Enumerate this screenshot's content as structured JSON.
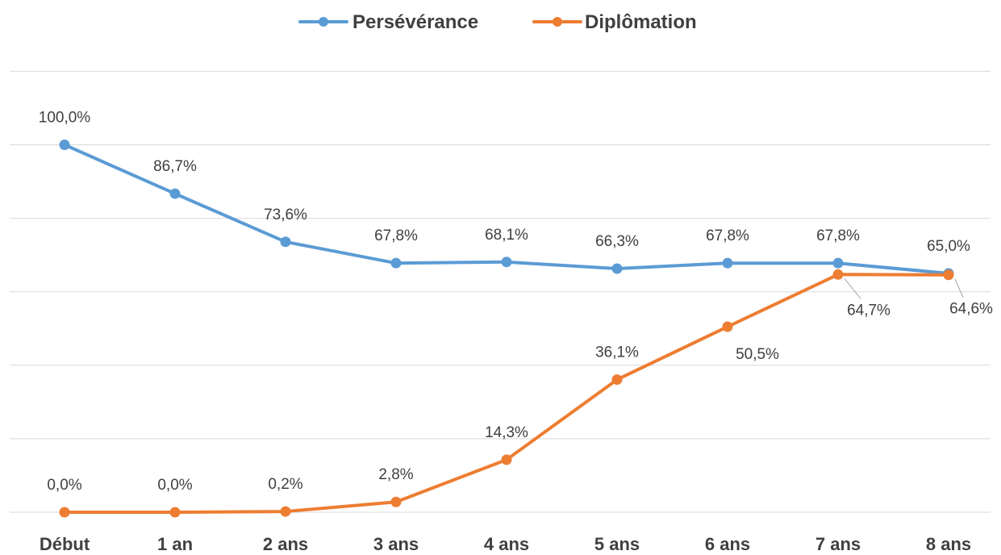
{
  "chart_data": {
    "type": "line",
    "categories": [
      "Début",
      "1 an",
      "2 ans",
      "3 ans",
      "4 ans",
      "5 ans",
      "6 ans",
      "7 ans",
      "8 ans"
    ],
    "series": [
      {
        "name": "Persévérance",
        "color": "#5b9bd5",
        "values": [
          100.0,
          86.7,
          73.6,
          67.8,
          68.1,
          66.3,
          67.8,
          67.8,
          65.0
        ],
        "labels": [
          "100,0%",
          "86,7%",
          "73,6%",
          "67,8%",
          "68,1%",
          "66,3%",
          "67,8%",
          "67,8%",
          "65,0%"
        ]
      },
      {
        "name": "Diplômation",
        "color": "#ed7d31",
        "values": [
          0.0,
          0.0,
          0.2,
          2.8,
          14.3,
          36.1,
          50.5,
          64.7,
          64.6
        ],
        "labels": [
          "0,0%",
          "0,0%",
          "0,2%",
          "2,8%",
          "14,3%",
          "36,1%",
          "50,5%",
          "64,7%",
          "64,6%"
        ]
      }
    ],
    "ylim": [
      0,
      120
    ],
    "grid": true,
    "legend_position": "top"
  }
}
